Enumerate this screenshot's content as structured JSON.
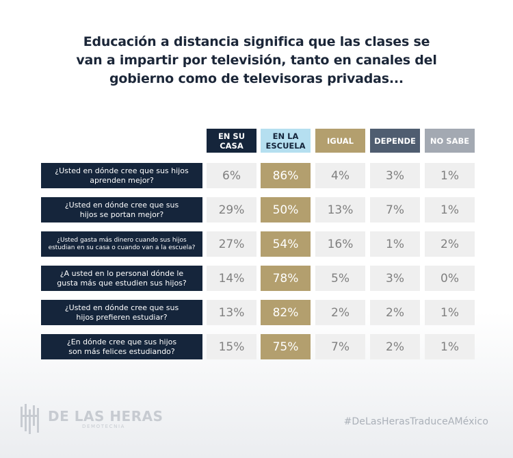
{
  "chart_data": {
    "type": "table",
    "title_lines": [
      "Educación a distancia significa que las clases se",
      "van a impartir por televisión, tanto en canales del",
      "gobierno como de televisoras privadas..."
    ],
    "columns": [
      {
        "lines": [
          "EN SU",
          "CASA"
        ],
        "bg": "#15253b",
        "fg": "#ffffff"
      },
      {
        "lines": [
          "EN LA",
          "ESCUELA"
        ],
        "bg": "#b5dff0",
        "fg": "#15253b"
      },
      {
        "lines": [
          "IGUAL"
        ],
        "bg": "#b39f6e",
        "fg": "#ffffff"
      },
      {
        "lines": [
          "DEPENDE"
        ],
        "bg": "#4f5d70",
        "fg": "#ffffff"
      },
      {
        "lines": [
          "NO SABE"
        ],
        "bg": "#a3a9b2",
        "fg": "#ffffff"
      }
    ],
    "rows": [
      {
        "question": [
          "¿Usted en dónde cree que sus hijos",
          "aprenden mejor?"
        ],
        "values": [
          "6%",
          "86%",
          "4%",
          "3%",
          "1%"
        ]
      },
      {
        "question": [
          "¿Usted en dónde cree que sus",
          "hijos se portan mejor?"
        ],
        "values": [
          "29%",
          "50%",
          "13%",
          "7%",
          "1%"
        ]
      },
      {
        "question": [
          "¿Usted gasta más dinero cuando sus hijos",
          "estudian en su casa o cuando van a la escuela?"
        ],
        "values": [
          "27%",
          "54%",
          "16%",
          "1%",
          "2%"
        ],
        "small": true
      },
      {
        "question": [
          "¿A usted en lo personal dónde le",
          "gusta más que estudien sus hijos?"
        ],
        "values": [
          "14%",
          "78%",
          "5%",
          "3%",
          "0%"
        ]
      },
      {
        "question": [
          "¿Usted en dónde cree que sus",
          "hijos prefieren estudiar?"
        ],
        "values": [
          "13%",
          "82%",
          "2%",
          "2%",
          "1%"
        ]
      },
      {
        "question": [
          "¿En dónde cree que sus hijos",
          "son más felices estudiando?"
        ],
        "values": [
          "15%",
          "75%",
          "7%",
          "2%",
          "1%"
        ]
      }
    ],
    "highlight_column": 1,
    "highlight_color": "#b39f6e"
  },
  "footer": {
    "logo_name": "DE LAS HERAS",
    "logo_sub": "DEMOTECNIA",
    "hashtag": "#DeLasHerasTraduceAMéxico"
  }
}
